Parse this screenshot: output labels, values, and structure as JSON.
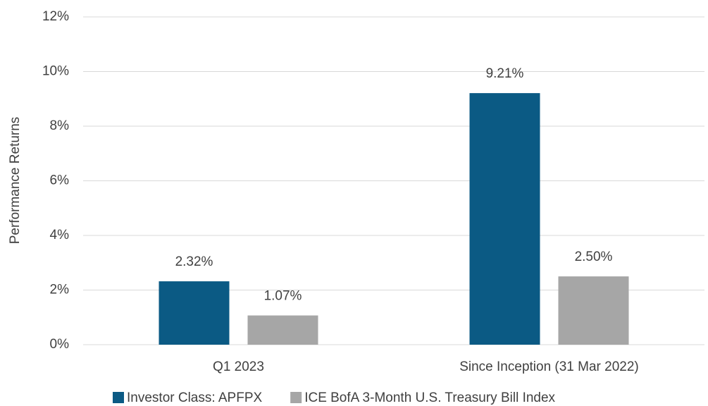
{
  "chart_data": {
    "type": "bar",
    "y_axis_label": "Performance Returns",
    "categories": [
      "Q1 2023",
      "Since Inception (31 Mar 2022)"
    ],
    "series": [
      {
        "name": "Investor Class: APFPX",
        "color": "#0b5a84",
        "values": [
          2.32,
          9.21
        ],
        "value_labels": [
          "2.32%",
          "9.21%"
        ]
      },
      {
        "name": "ICE BofA 3-Month U.S. Treasury Bill Index",
        "color": "#a6a6a6",
        "values": [
          1.07,
          2.5
        ],
        "value_labels": [
          "1.07%",
          "2.50%"
        ]
      }
    ],
    "ylim": [
      0,
      12
    ],
    "yticks": [
      {
        "value": 0,
        "label": "0%"
      },
      {
        "value": 2,
        "label": "2%"
      },
      {
        "value": 4,
        "label": "4%"
      },
      {
        "value": 6,
        "label": "6%"
      },
      {
        "value": 8,
        "label": "8%"
      },
      {
        "value": 10,
        "label": "10%"
      },
      {
        "value": 12,
        "label": "12%"
      }
    ],
    "grid": true,
    "legend": "bottom"
  }
}
